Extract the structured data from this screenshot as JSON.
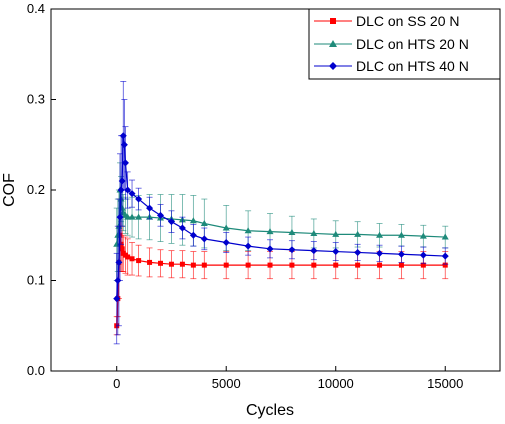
{
  "chart_data": {
    "type": "line",
    "xlabel": "Cycles",
    "ylabel": "COF",
    "xlim": [
      -3000,
      17500
    ],
    "ylim": [
      0.0,
      0.4
    ],
    "xticks": [
      0,
      5000,
      10000,
      15000
    ],
    "yticks": [
      0.0,
      0.1,
      0.2,
      0.3,
      0.4
    ],
    "xtick_labels": [
      "0",
      "5000",
      "10000",
      "15000"
    ],
    "ytick_labels": [
      "0.0",
      "0.1",
      "0.2",
      "0.3",
      "0.4"
    ],
    "grid": false,
    "legend_position": "top-right",
    "series": [
      {
        "name": "DLC on SS 20 N",
        "color": "#ff0000",
        "marker": "square",
        "x": [
          0,
          50,
          100,
          150,
          200,
          250,
          300,
          400,
          500,
          700,
          1000,
          1500,
          2000,
          2500,
          3000,
          3500,
          4000,
          5000,
          6000,
          7000,
          8000,
          9000,
          10000,
          11000,
          12000,
          13000,
          14000,
          15000
        ],
        "y": [
          0.05,
          0.08,
          0.12,
          0.15,
          0.14,
          0.135,
          0.13,
          0.128,
          0.126,
          0.124,
          0.122,
          0.12,
          0.119,
          0.118,
          0.118,
          0.117,
          0.117,
          0.117,
          0.117,
          0.117,
          0.117,
          0.117,
          0.117,
          0.117,
          0.117,
          0.117,
          0.117,
          0.117
        ],
        "err": [
          0.01,
          0.02,
          0.04,
          0.04,
          0.03,
          0.025,
          0.02,
          0.02,
          0.02,
          0.018,
          0.017,
          0.016,
          0.015,
          0.015,
          0.015,
          0.015,
          0.015,
          0.015,
          0.015,
          0.015,
          0.015,
          0.015,
          0.015,
          0.015,
          0.015,
          0.015,
          0.015,
          0.015
        ]
      },
      {
        "name": "DLC on HTS 20 N",
        "color": "#1e8a7a",
        "marker": "triangle",
        "x": [
          0,
          50,
          100,
          150,
          200,
          250,
          300,
          400,
          500,
          700,
          1000,
          1500,
          2000,
          2500,
          3000,
          3500,
          4000,
          5000,
          6000,
          7000,
          8000,
          9000,
          10000,
          11000,
          12000,
          13000,
          14000,
          15000
        ],
        "y": [
          0.14,
          0.15,
          0.16,
          0.2,
          0.19,
          0.18,
          0.175,
          0.172,
          0.17,
          0.17,
          0.17,
          0.17,
          0.169,
          0.168,
          0.167,
          0.166,
          0.163,
          0.158,
          0.155,
          0.154,
          0.153,
          0.152,
          0.151,
          0.151,
          0.15,
          0.15,
          0.149,
          0.148
        ],
        "err": [
          0.04,
          0.04,
          0.04,
          0.03,
          0.025,
          0.02,
          0.02,
          0.02,
          0.02,
          0.022,
          0.024,
          0.025,
          0.026,
          0.027,
          0.028,
          0.028,
          0.027,
          0.025,
          0.022,
          0.02,
          0.018,
          0.016,
          0.015,
          0.014,
          0.013,
          0.012,
          0.012,
          0.012
        ]
      },
      {
        "name": "DLC on HTS 40 N",
        "color": "#0000cd",
        "marker": "diamond",
        "x": [
          0,
          50,
          100,
          150,
          200,
          250,
          300,
          350,
          400,
          500,
          700,
          1000,
          1500,
          2000,
          2500,
          3000,
          3500,
          4000,
          5000,
          6000,
          7000,
          8000,
          9000,
          10000,
          11000,
          12000,
          13000,
          14000,
          15000
        ],
        "y": [
          0.08,
          0.1,
          0.12,
          0.17,
          0.2,
          0.21,
          0.26,
          0.25,
          0.23,
          0.2,
          0.196,
          0.19,
          0.18,
          0.172,
          0.165,
          0.158,
          0.15,
          0.146,
          0.142,
          0.138,
          0.135,
          0.134,
          0.133,
          0.132,
          0.131,
          0.13,
          0.129,
          0.128,
          0.127
        ],
        "err": [
          0.05,
          0.06,
          0.07,
          0.07,
          0.06,
          0.05,
          0.06,
          0.05,
          0.04,
          0.02,
          0.015,
          0.012,
          0.012,
          0.012,
          0.012,
          0.012,
          0.012,
          0.012,
          0.011,
          0.01,
          0.01,
          0.01,
          0.01,
          0.01,
          0.009,
          0.009,
          0.009,
          0.009,
          0.009
        ]
      }
    ]
  }
}
